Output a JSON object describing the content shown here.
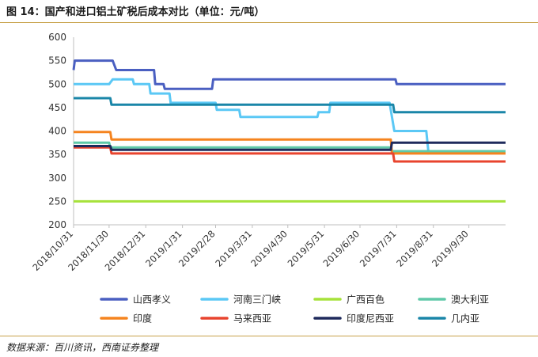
{
  "figure": {
    "title": "图 14：国产和进口铝土矿税后成本对比（单位：元/吨）",
    "source": "数据来源：百川资讯，西南证券整理"
  },
  "chart_data": {
    "type": "line",
    "title": "",
    "xlabel": "",
    "ylabel": "",
    "ylim": [
      200,
      600
    ],
    "yticks": [
      200,
      250,
      300,
      350,
      400,
      450,
      500,
      550,
      600
    ],
    "xlim": [
      "2018-10-31",
      "2019-10-31"
    ],
    "xticks": [
      "2018/10/31",
      "2018/11/30",
      "2018/12/31",
      "2019/1/31",
      "2019/2/28",
      "2019/3/31",
      "2019/4/30",
      "2019/5/31",
      "2019/6/30",
      "2019/7/31",
      "2019/8/31",
      "2019/9/30"
    ],
    "grid": false,
    "legend_position": "bottom",
    "series": [
      {
        "name": "山西孝义",
        "color": "#4a5fc1",
        "step": true,
        "points": [
          [
            "2018-10-31",
            530
          ],
          [
            "2018-11-01",
            550
          ],
          [
            "2018-12-03",
            550
          ],
          [
            "2018-12-06",
            530
          ],
          [
            "2019-01-07",
            530
          ],
          [
            "2019-01-08",
            500
          ],
          [
            "2019-01-15",
            500
          ],
          [
            "2019-01-16",
            490
          ],
          [
            "2019-02-25",
            490
          ],
          [
            "2019-02-26",
            510
          ],
          [
            "2019-07-30",
            510
          ],
          [
            "2019-07-31",
            500
          ],
          [
            "2019-10-31",
            500
          ]
        ]
      },
      {
        "name": "河南三门峡",
        "color": "#5bc8f5",
        "step": true,
        "points": [
          [
            "2018-10-31",
            500
          ],
          [
            "2018-11-30",
            500
          ],
          [
            "2018-12-03",
            510
          ],
          [
            "2018-12-20",
            510
          ],
          [
            "2018-12-21",
            500
          ],
          [
            "2019-01-03",
            500
          ],
          [
            "2019-01-04",
            480
          ],
          [
            "2019-01-20",
            480
          ],
          [
            "2019-01-21",
            460
          ],
          [
            "2019-02-28",
            460
          ],
          [
            "2019-03-01",
            445
          ],
          [
            "2019-03-20",
            445
          ],
          [
            "2019-03-21",
            430
          ],
          [
            "2019-05-25",
            430
          ],
          [
            "2019-05-26",
            440
          ],
          [
            "2019-06-04",
            440
          ],
          [
            "2019-06-05",
            460
          ],
          [
            "2019-07-25",
            460
          ],
          [
            "2019-07-29",
            400
          ],
          [
            "2019-08-25",
            400
          ],
          [
            "2019-08-27",
            350
          ]
        ]
      },
      {
        "name": "广西百色",
        "color": "#a6e23a",
        "step": true,
        "points": [
          [
            "2018-10-31",
            250
          ],
          [
            "2019-10-31",
            250
          ]
        ]
      },
      {
        "name": "澳大利亚",
        "color": "#5fc9a8",
        "step": true,
        "points": [
          [
            "2018-10-31",
            375
          ],
          [
            "2018-11-30",
            375
          ],
          [
            "2018-12-01",
            365
          ],
          [
            "2019-07-26",
            365
          ],
          [
            "2019-07-27",
            357
          ],
          [
            "2019-10-31",
            357
          ]
        ]
      },
      {
        "name": "印度",
        "color": "#f5841f",
        "step": true,
        "points": [
          [
            "2018-10-31",
            398
          ],
          [
            "2018-12-01",
            398
          ],
          [
            "2018-12-02",
            382
          ],
          [
            "2019-07-26",
            382
          ],
          [
            "2019-07-27",
            352
          ],
          [
            "2019-10-31",
            352
          ]
        ]
      },
      {
        "name": "马来西亚",
        "color": "#e8442e",
        "step": true,
        "points": [
          [
            "2018-10-31",
            365
          ],
          [
            "2018-12-01",
            365
          ],
          [
            "2018-12-02",
            352
          ],
          [
            "2019-07-28",
            352
          ],
          [
            "2019-07-29",
            335
          ],
          [
            "2019-10-31",
            335
          ]
        ]
      },
      {
        "name": "印度尼西亚",
        "color": "#1f2a5c",
        "step": true,
        "points": [
          [
            "2018-10-31",
            368
          ],
          [
            "2018-12-01",
            368
          ],
          [
            "2018-12-02",
            360
          ],
          [
            "2019-07-26",
            360
          ],
          [
            "2019-07-27",
            375
          ],
          [
            "2019-10-31",
            375
          ]
        ]
      },
      {
        "name": "几内亚",
        "color": "#1a86a8",
        "step": true,
        "points": [
          [
            "2018-10-31",
            470
          ],
          [
            "2018-12-01",
            470
          ],
          [
            "2018-12-02",
            456
          ],
          [
            "2019-07-28",
            456
          ],
          [
            "2019-07-29",
            440
          ],
          [
            "2019-10-31",
            440
          ]
        ]
      }
    ]
  }
}
